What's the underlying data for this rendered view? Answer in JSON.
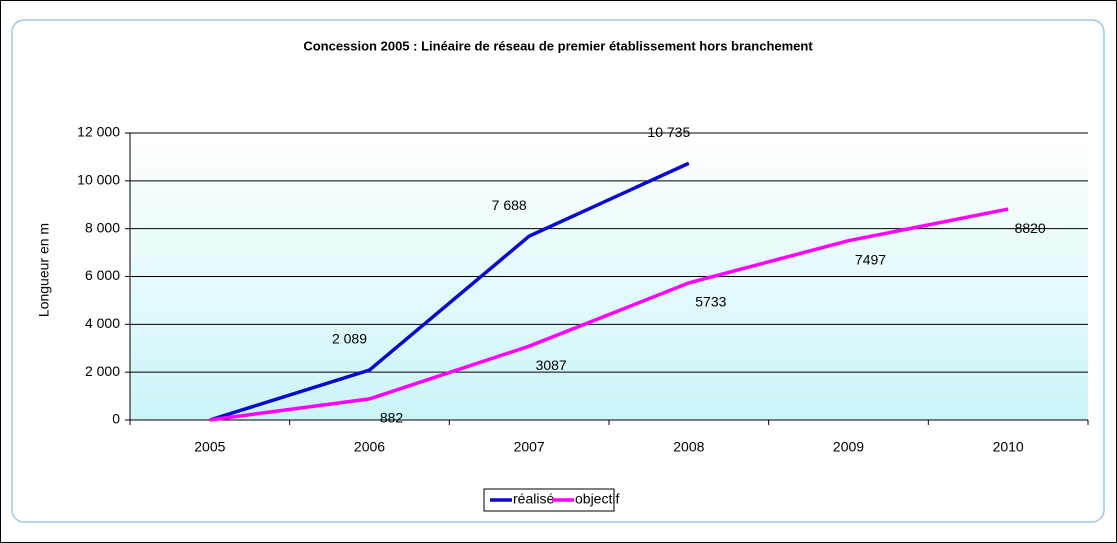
{
  "chart_data": {
    "type": "line",
    "title": "Concession 2005 : Linéaire de réseau de premier établissement hors branchement",
    "y_label": "Longueur en m",
    "categories": [
      "2005",
      "2006",
      "2007",
      "2008",
      "2009",
      "2010"
    ],
    "series": [
      {
        "name": "réalisé",
        "color": "#0a0acc",
        "values": [
          0,
          2089,
          7688,
          10735,
          null,
          null
        ],
        "value_labels": [
          null,
          "2 089",
          "7 688",
          "10 735",
          null,
          null
        ]
      },
      {
        "name": "objectif",
        "color": "#ff00ff",
        "values": [
          0,
          882,
          3087,
          5733,
          7497,
          8820
        ],
        "value_labels": [
          null,
          "882",
          "3087",
          "5733",
          "7497",
          "8820"
        ]
      }
    ],
    "ylim": [
      0,
      12000
    ],
    "yticks": [
      0,
      {
        "value": 2000,
        "label": "2 000"
      },
      {
        "value": 4000,
        "label": "4 000"
      },
      {
        "value": 6000,
        "label": "6 000"
      },
      {
        "value": 8000,
        "label": "8 000"
      },
      {
        "value": 10000,
        "label": "10 000"
      },
      {
        "value": 12000,
        "label": "12 000"
      }
    ],
    "grid": true,
    "legend": "bottom"
  }
}
